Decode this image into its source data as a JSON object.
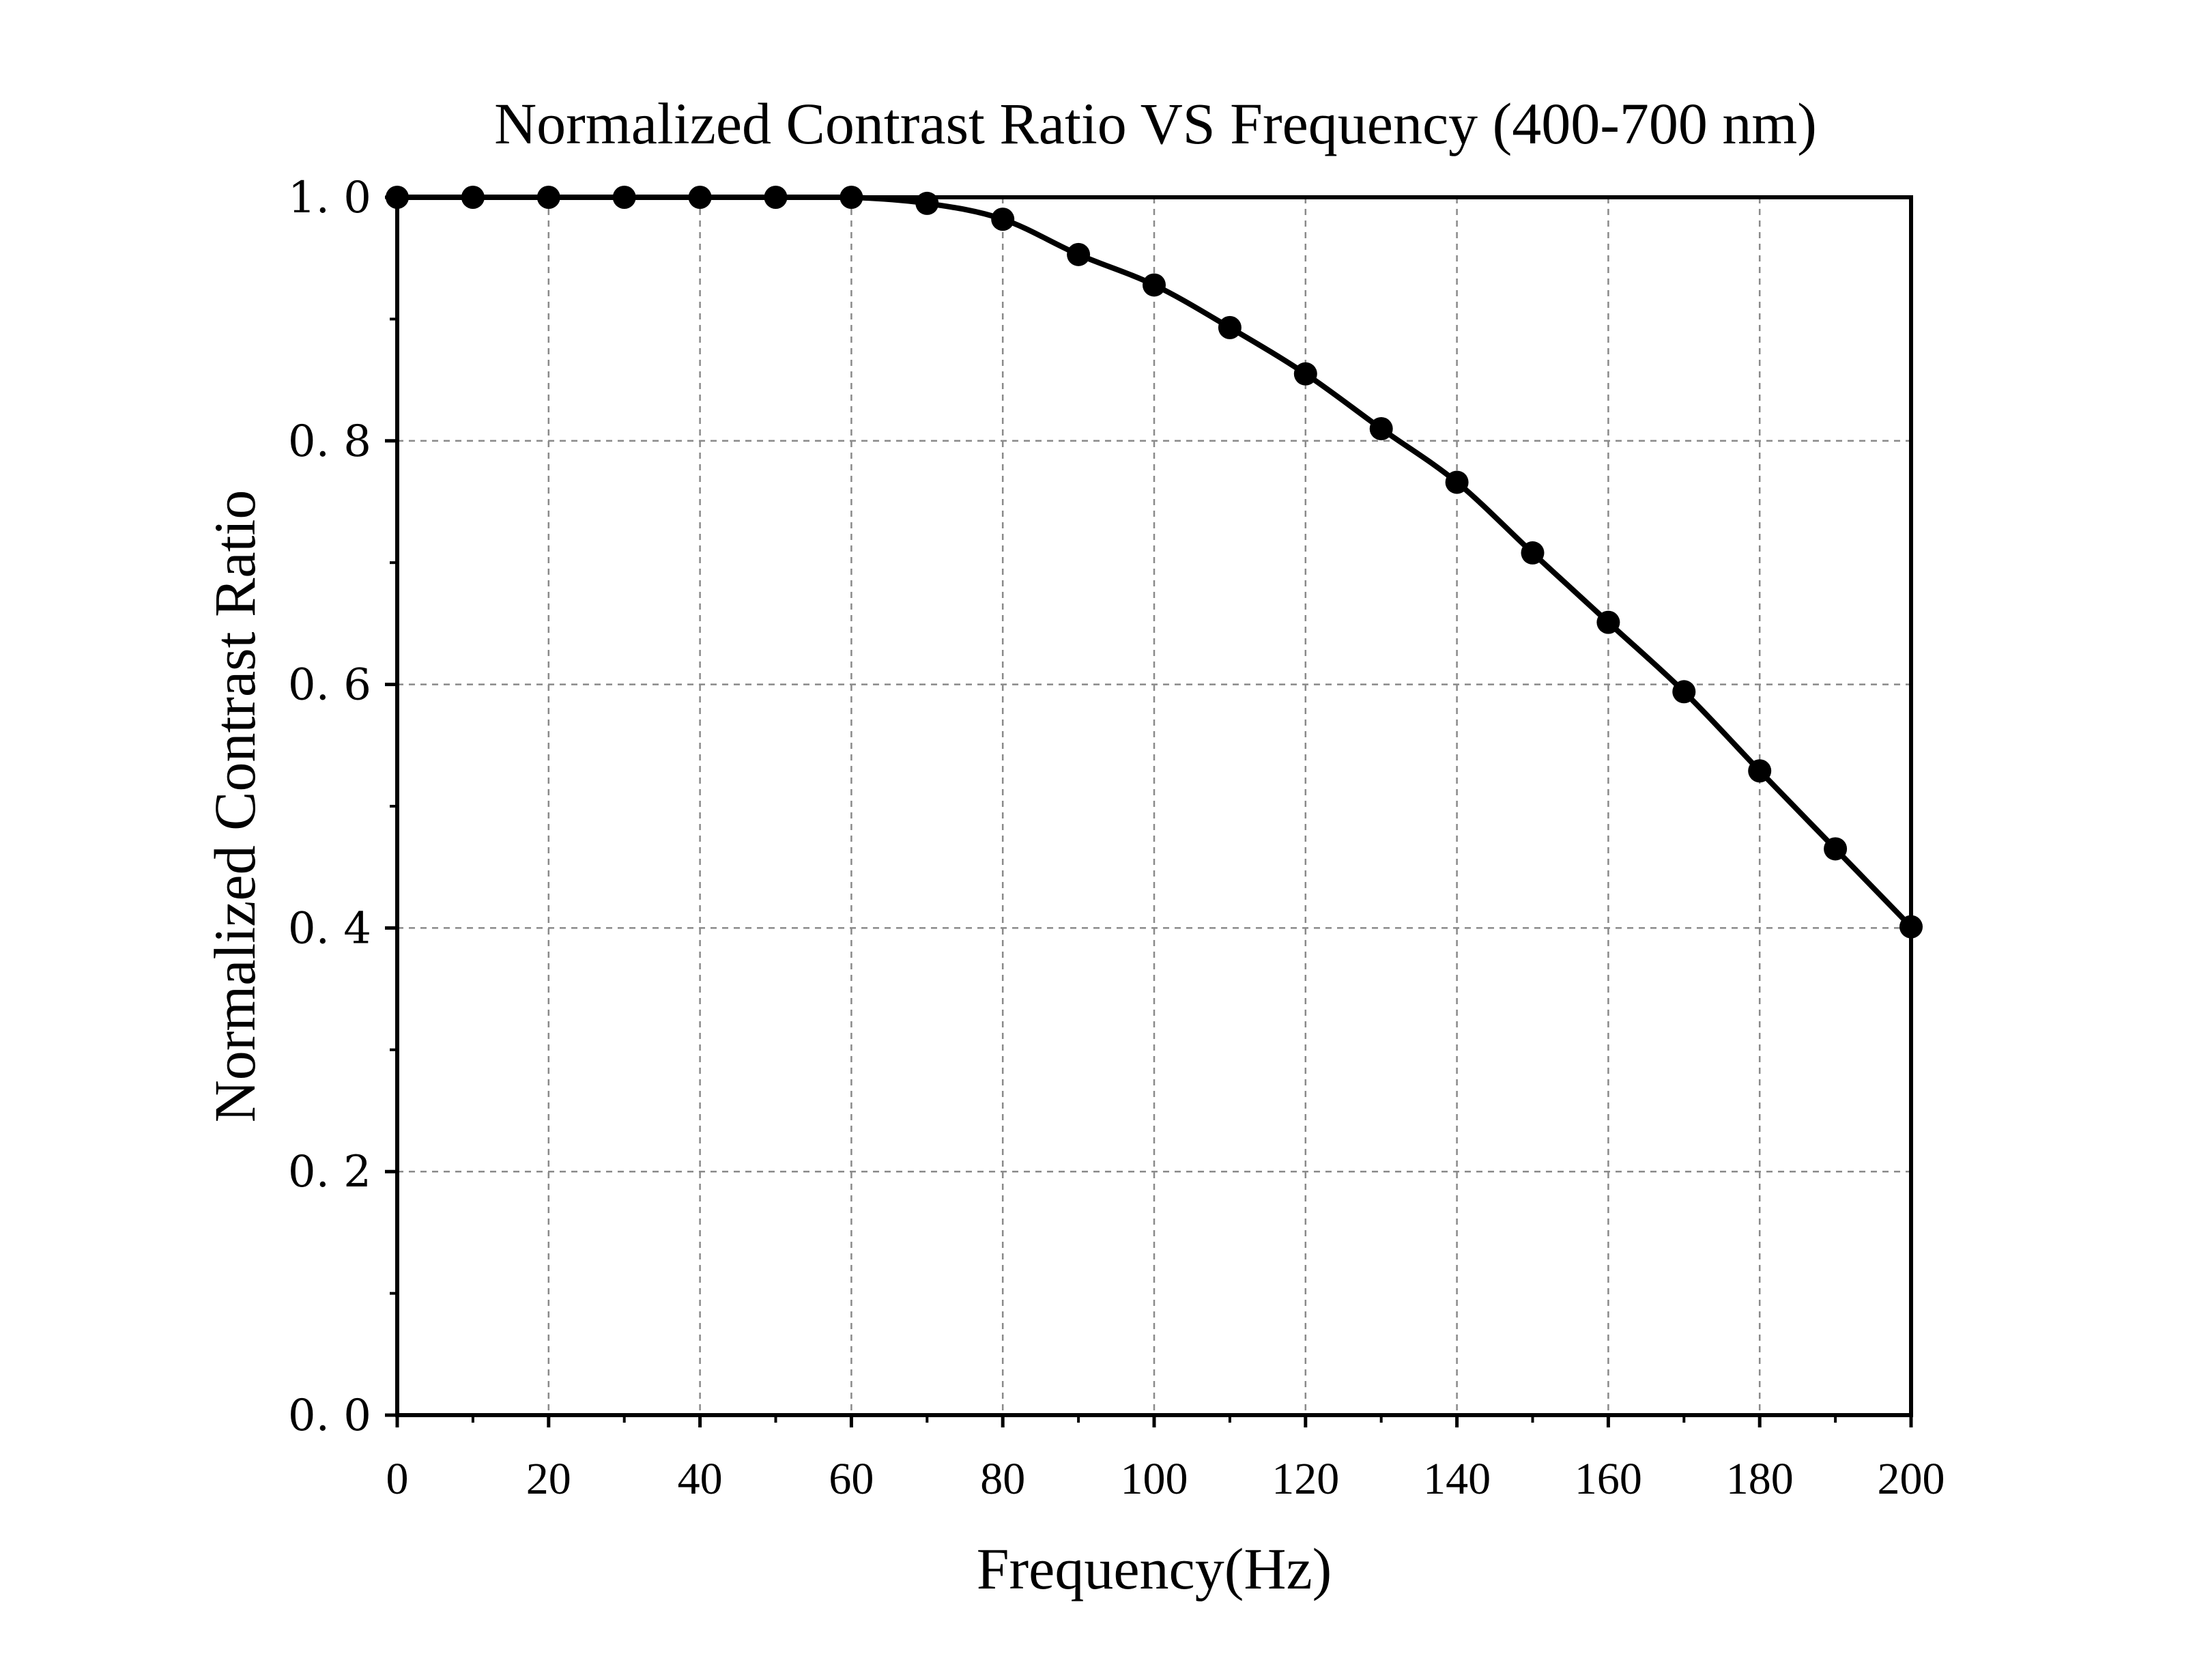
{
  "chart_data": {
    "type": "line",
    "title": "Normalized Contrast Ratio  VS  Frequency (400-700 nm)",
    "xlabel": "Frequency(Hz)",
    "ylabel": "Normalized Contrast Ratio",
    "xlim": [
      0,
      200
    ],
    "ylim": [
      0.0,
      1.0
    ],
    "x_ticks": [
      "0",
      "20",
      "40",
      "60",
      "80",
      "100",
      "120",
      "140",
      "160",
      "180",
      "200"
    ],
    "y_ticks": [
      "0. 0",
      "0. 2",
      "0. 4",
      "0. 6",
      "0. 8",
      "1. 0"
    ],
    "grid": true,
    "legend": "none",
    "series": [
      {
        "x": [
          0,
          10,
          20,
          30,
          40,
          50,
          60,
          70,
          80,
          90,
          100,
          110,
          120,
          130,
          140,
          150,
          160,
          170,
          180,
          190,
          200
        ],
        "values": [
          1.0,
          1.0,
          1.0,
          1.0,
          1.0,
          1.0,
          1.0,
          0.995,
          0.982,
          0.953,
          0.928,
          0.893,
          0.855,
          0.81,
          0.766,
          0.708,
          0.651,
          0.594,
          0.529,
          0.465,
          0.401
        ],
        "color": "#000000"
      }
    ]
  }
}
